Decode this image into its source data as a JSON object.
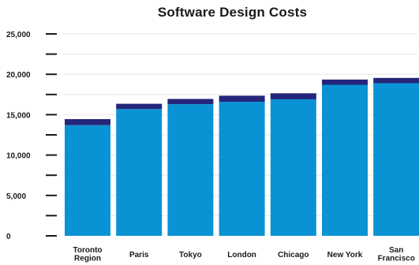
{
  "chart_data": {
    "type": "bar",
    "title": "Software Design Costs",
    "xlabel": "",
    "ylabel": "",
    "ylim": [
      0,
      25000
    ],
    "grid": true,
    "stacked": true,
    "categories": [
      [
        "Toronto",
        "Region"
      ],
      [
        "Paris"
      ],
      [
        "Tokyo"
      ],
      [
        "London"
      ],
      [
        "Chicago"
      ],
      [
        "New York"
      ],
      [
        "San",
        "Francisco"
      ]
    ],
    "series": [
      {
        "values": [
          13700,
          15700,
          16300,
          16600,
          16900,
          18700,
          18900
        ],
        "color": "#0a93d4"
      },
      {
        "values": [
          750,
          650,
          650,
          750,
          750,
          650,
          650
        ],
        "color": "#24267a"
      }
    ],
    "totals": [
      14450,
      16350,
      16950,
      17350,
      17650,
      19350,
      19550
    ],
    "yticks": [
      {
        "value": 0,
        "label": "0"
      },
      {
        "value": 2500,
        "label": ""
      },
      {
        "value": 5000,
        "label": "5,000"
      },
      {
        "value": 7500,
        "label": ""
      },
      {
        "value": 10000,
        "label": "10,000"
      },
      {
        "value": 12500,
        "label": ""
      },
      {
        "value": 15000,
        "label": "15,000"
      },
      {
        "value": 17500,
        "label": ""
      },
      {
        "value": 20000,
        "label": "20,000"
      },
      {
        "value": 22500,
        "label": ""
      },
      {
        "value": 25000,
        "label": "25,000"
      }
    ],
    "colors": {
      "grid": "#e6e6e6",
      "tick": "#1a1a1a"
    }
  }
}
